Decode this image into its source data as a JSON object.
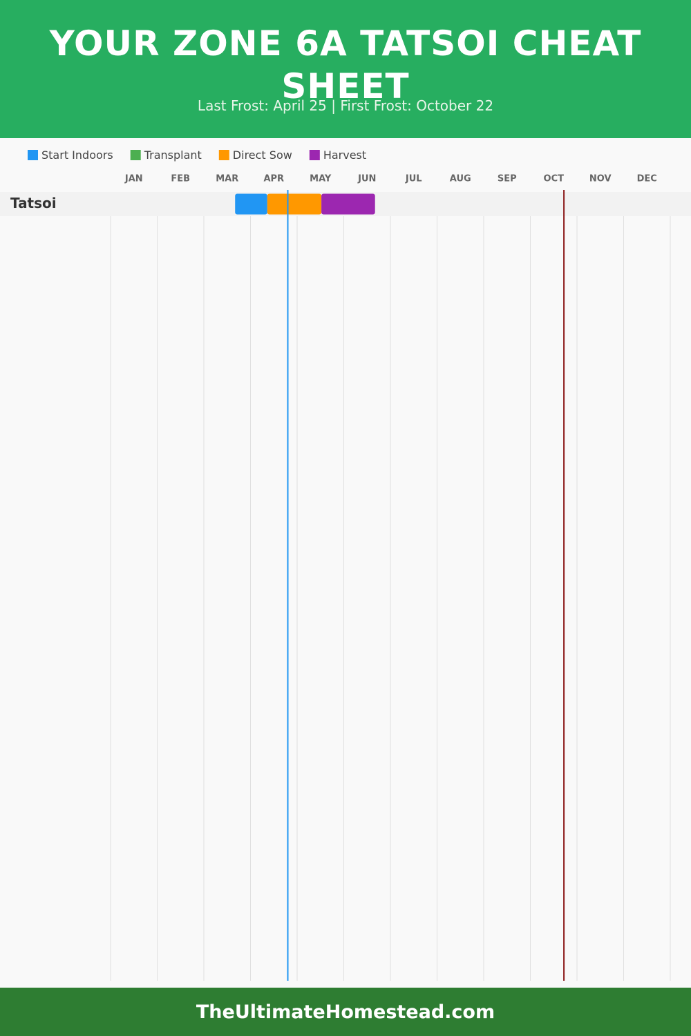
{
  "chart_data": {
    "type": "gantt",
    "title": "YOUR ZONE 6A TATSOI CHEAT SHEET",
    "subtitle": "Last Frost: April 25 | First Frost: October 22",
    "footer": "TheUltimateHomestead.com",
    "categories": [
      "Tatsoi"
    ],
    "xlim": [
      0,
      12
    ],
    "xticks": [
      {
        "value": 0.5,
        "label": "JAN"
      },
      {
        "value": 1.5,
        "label": "FEB"
      },
      {
        "value": 2.5,
        "label": "MAR"
      },
      {
        "value": 3.5,
        "label": "APR"
      },
      {
        "value": 4.5,
        "label": "MAY"
      },
      {
        "value": 5.5,
        "label": "JUN"
      },
      {
        "value": 6.5,
        "label": "JUL"
      },
      {
        "value": 7.5,
        "label": "AUG"
      },
      {
        "value": 8.5,
        "label": "SEP"
      },
      {
        "value": 9.5,
        "label": "OCT"
      },
      {
        "value": 10.5,
        "label": "NOV"
      },
      {
        "value": 11.5,
        "label": "DEC"
      }
    ],
    "grid": true,
    "series": [
      {
        "name": "Start Indoors",
        "color": "#2196f3",
        "values": [
          [
            2.67,
            3.36
          ]
        ]
      },
      {
        "name": "Transplant",
        "color": "#4caf50",
        "values": [
          null
        ]
      },
      {
        "name": "Direct Sow",
        "color": "#ff9800",
        "values": [
          [
            3.36,
            4.52
          ]
        ]
      },
      {
        "name": "Harvest",
        "color": "#9c27b0",
        "values": [
          [
            4.52,
            5.67
          ]
        ]
      }
    ],
    "frost_lines": [
      {
        "value": 3.8,
        "color": "#2196f3"
      },
      {
        "value": 9.72,
        "color": "#8b1a1a"
      }
    ]
  }
}
